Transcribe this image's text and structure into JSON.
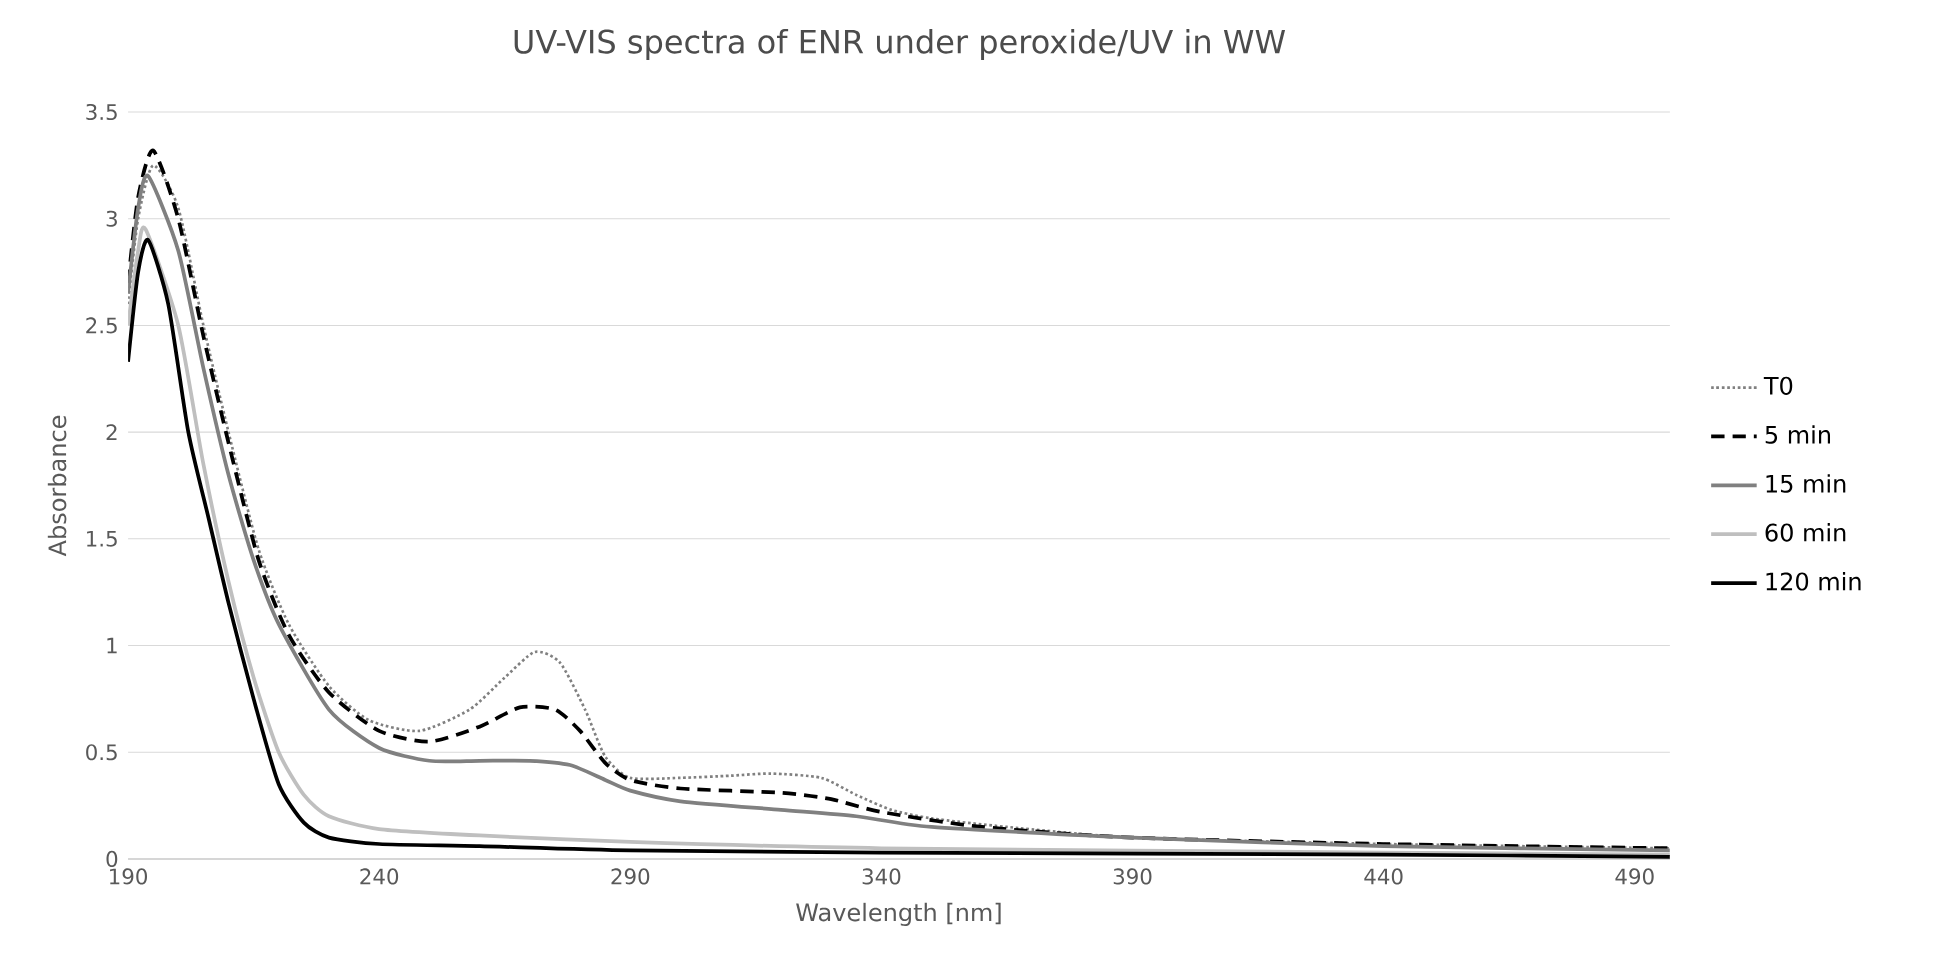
{
  "chart_data": {
    "type": "line",
    "title": "UV-VIS spectra of ENR under peroxide/UV in WW",
    "xlabel": "Wavelength [nm]",
    "ylabel": "Absorbance",
    "xlim": [
      190,
      497
    ],
    "xticks": [
      190,
      240,
      290,
      340,
      390,
      440,
      490
    ],
    "ylim": [
      0,
      3.5
    ],
    "yticks": [
      0,
      0.5,
      1,
      1.5,
      2,
      2.5,
      3,
      3.5
    ],
    "grid": "y",
    "legend": "right",
    "marker": "none",
    "series": [
      {
        "name": "T0",
        "color": "#808080",
        "line_style": "dotted",
        "x": [
          190,
          192,
          195,
          200,
          205,
          210,
          216,
          222,
          230,
          238,
          248,
          258,
          265,
          271,
          276,
          281,
          285,
          290,
          300,
          310,
          318,
          328,
          335,
          342,
          350,
          365,
          390,
          440,
          497
        ],
        "values": [
          2.6,
          3.0,
          3.25,
          3.05,
          2.5,
          2.0,
          1.45,
          1.1,
          0.81,
          0.65,
          0.6,
          0.7,
          0.85,
          0.97,
          0.92,
          0.7,
          0.48,
          0.38,
          0.38,
          0.39,
          0.4,
          0.38,
          0.3,
          0.23,
          0.19,
          0.15,
          0.1,
          0.07,
          0.05
        ]
      },
      {
        "name": "5 min",
        "color": "#000000",
        "line_style": "dashed",
        "x": [
          190,
          192,
          195,
          200,
          205,
          210,
          216,
          222,
          230,
          240,
          250,
          260,
          268,
          275,
          280,
          285,
          290,
          300,
          320,
          330,
          340,
          360,
          390,
          440,
          497
        ],
        "values": [
          2.7,
          3.1,
          3.32,
          3.0,
          2.45,
          1.95,
          1.4,
          1.05,
          0.78,
          0.6,
          0.55,
          0.62,
          0.71,
          0.7,
          0.6,
          0.45,
          0.37,
          0.33,
          0.31,
          0.28,
          0.22,
          0.15,
          0.1,
          0.07,
          0.05
        ]
      },
      {
        "name": "15 min",
        "color": "#808080",
        "line_style": "solid",
        "x": [
          190,
          192,
          194,
          200,
          205,
          210,
          215,
          220,
          230,
          240,
          250,
          260,
          270,
          278,
          285,
          290,
          300,
          320,
          335,
          350,
          390,
          440,
          497
        ],
        "values": [
          2.65,
          3.05,
          3.2,
          2.85,
          2.3,
          1.8,
          1.4,
          1.1,
          0.7,
          0.52,
          0.46,
          0.46,
          0.46,
          0.44,
          0.37,
          0.32,
          0.27,
          0.23,
          0.2,
          0.15,
          0.1,
          0.06,
          0.04
        ]
      },
      {
        "name": "60 min",
        "color": "#bfbfbf",
        "line_style": "solid",
        "x": [
          190,
          192,
          193.5,
          200,
          205,
          210,
          215,
          220,
          225,
          230,
          240,
          260,
          290,
          340,
          440,
          497
        ],
        "values": [
          2.5,
          2.85,
          2.95,
          2.5,
          1.85,
          1.3,
          0.85,
          0.5,
          0.3,
          0.2,
          0.14,
          0.11,
          0.08,
          0.05,
          0.03,
          0.02
        ]
      },
      {
        "name": "120 min",
        "color": "#000000",
        "line_style": "solid",
        "x": [
          190,
          192,
          194,
          198,
          202,
          206,
          210,
          215,
          220,
          225,
          230,
          240,
          260,
          290,
          340,
          440,
          497
        ],
        "values": [
          2.33,
          2.75,
          2.9,
          2.6,
          2.0,
          1.6,
          1.2,
          0.75,
          0.35,
          0.17,
          0.1,
          0.07,
          0.06,
          0.04,
          0.03,
          0.02,
          0.01
        ]
      }
    ]
  }
}
